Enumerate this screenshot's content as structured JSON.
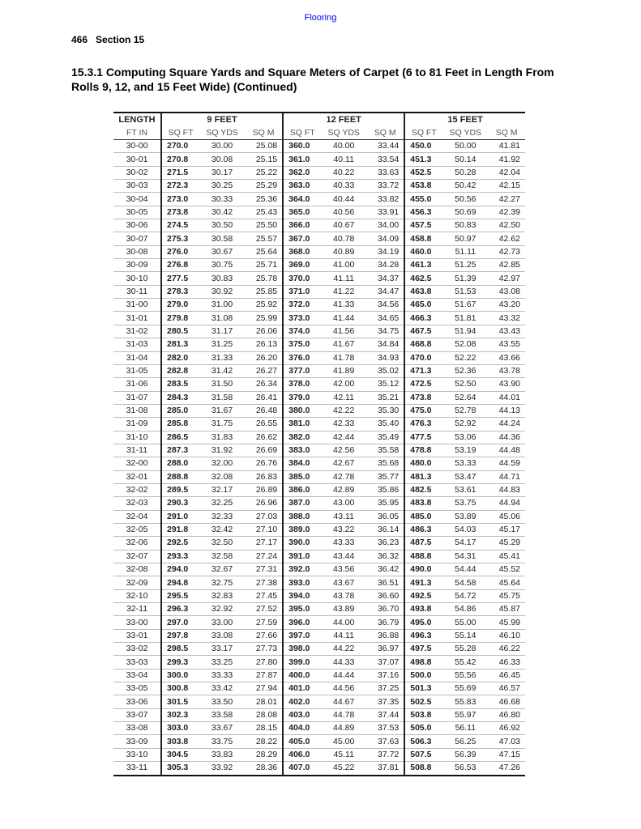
{
  "running_header": "Flooring",
  "page_number": "466",
  "section": "Section 15",
  "title": "15.3.1 Computing Square Yards and Square Meters of Carpet (6 to 81 Feet in Length From Rolls 9, 12, and 15 Feet Wide) (Continued)",
  "table": {
    "group_headers": [
      "LENGTH",
      "9 FEET",
      "12 FEET",
      "15 FEET"
    ],
    "sub_headers": [
      "FT IN",
      "SQ FT",
      "SQ YDS",
      "SQ M",
      "SQ FT",
      "SQ YDS",
      "SQ M",
      "SQ FT",
      "SQ YDS",
      "SQ M"
    ],
    "rows": [
      [
        "30-00",
        "270.0",
        "30.00",
        "25.08",
        "360.0",
        "40.00",
        "33.44",
        "450.0",
        "50.00",
        "41.81"
      ],
      [
        "30-01",
        "270.8",
        "30.08",
        "25.15",
        "361.0",
        "40.11",
        "33.54",
        "451.3",
        "50.14",
        "41.92"
      ],
      [
        "30-02",
        "271.5",
        "30.17",
        "25.22",
        "362.0",
        "40.22",
        "33.63",
        "452.5",
        "50.28",
        "42.04"
      ],
      [
        "30-03",
        "272.3",
        "30.25",
        "25.29",
        "363.0",
        "40.33",
        "33.72",
        "453.8",
        "50.42",
        "42.15"
      ],
      [
        "30-04",
        "273.0",
        "30.33",
        "25.36",
        "364.0",
        "40.44",
        "33.82",
        "455.0",
        "50.56",
        "42.27"
      ],
      [
        "30-05",
        "273.8",
        "30.42",
        "25.43",
        "365.0",
        "40.56",
        "33.91",
        "456.3",
        "50.69",
        "42.39"
      ],
      [
        "30-06",
        "274.5",
        "30.50",
        "25.50",
        "366.0",
        "40.67",
        "34.00",
        "457.5",
        "50.83",
        "42.50"
      ],
      [
        "30-07",
        "275.3",
        "30.58",
        "25.57",
        "367.0",
        "40.78",
        "34.09",
        "458.8",
        "50.97",
        "42.62"
      ],
      [
        "30-08",
        "276.0",
        "30.67",
        "25.64",
        "368.0",
        "40.89",
        "34.19",
        "460.0",
        "51.11",
        "42.73"
      ],
      [
        "30-09",
        "276.8",
        "30.75",
        "25.71",
        "369.0",
        "41.00",
        "34.28",
        "461.3",
        "51.25",
        "42.85"
      ],
      [
        "30-10",
        "277.5",
        "30.83",
        "25.78",
        "370.0",
        "41.11",
        "34.37",
        "462.5",
        "51.39",
        "42.97"
      ],
      [
        "30-11",
        "278.3",
        "30.92",
        "25.85",
        "371.0",
        "41.22",
        "34.47",
        "463.8",
        "51.53",
        "43.08"
      ],
      [
        "31-00",
        "279.0",
        "31.00",
        "25.92",
        "372.0",
        "41.33",
        "34.56",
        "465.0",
        "51.67",
        "43.20"
      ],
      [
        "31-01",
        "279.8",
        "31.08",
        "25.99",
        "373.0",
        "41.44",
        "34.65",
        "466.3",
        "51.81",
        "43.32"
      ],
      [
        "31-02",
        "280.5",
        "31.17",
        "26.06",
        "374.0",
        "41.56",
        "34.75",
        "467.5",
        "51.94",
        "43.43"
      ],
      [
        "31-03",
        "281.3",
        "31.25",
        "26.13",
        "375.0",
        "41.67",
        "34.84",
        "468.8",
        "52.08",
        "43.55"
      ],
      [
        "31-04",
        "282.0",
        "31.33",
        "26.20",
        "376.0",
        "41.78",
        "34.93",
        "470.0",
        "52.22",
        "43.66"
      ],
      [
        "31-05",
        "282.8",
        "31.42",
        "26.27",
        "377.0",
        "41.89",
        "35.02",
        "471.3",
        "52.36",
        "43.78"
      ],
      [
        "31-06",
        "283.5",
        "31.50",
        "26.34",
        "378.0",
        "42.00",
        "35.12",
        "472.5",
        "52.50",
        "43.90"
      ],
      [
        "31-07",
        "284.3",
        "31.58",
        "26.41",
        "379.0",
        "42.11",
        "35.21",
        "473.8",
        "52.64",
        "44.01"
      ],
      [
        "31-08",
        "285.0",
        "31.67",
        "26.48",
        "380.0",
        "42.22",
        "35.30",
        "475.0",
        "52.78",
        "44.13"
      ],
      [
        "31-09",
        "285.8",
        "31.75",
        "26.55",
        "381.0",
        "42.33",
        "35.40",
        "476.3",
        "52.92",
        "44.24"
      ],
      [
        "31-10",
        "286.5",
        "31.83",
        "26.62",
        "382.0",
        "42.44",
        "35.49",
        "477.5",
        "53.06",
        "44.36"
      ],
      [
        "31-11",
        "287.3",
        "31.92",
        "26.69",
        "383.0",
        "42.56",
        "35.58",
        "478.8",
        "53.19",
        "44.48"
      ],
      [
        "32-00",
        "288.0",
        "32.00",
        "26.76",
        "384.0",
        "42.67",
        "35.68",
        "480.0",
        "53.33",
        "44.59"
      ],
      [
        "32-01",
        "288.8",
        "32.08",
        "26.83",
        "385.0",
        "42.78",
        "35.77",
        "481.3",
        "53.47",
        "44.71"
      ],
      [
        "32-02",
        "289.5",
        "32.17",
        "26.89",
        "386.0",
        "42.89",
        "35.86",
        "482.5",
        "53.61",
        "44.83"
      ],
      [
        "32-03",
        "290.3",
        "32.25",
        "26.96",
        "387.0",
        "43.00",
        "35.95",
        "483.8",
        "53.75",
        "44.94"
      ],
      [
        "32-04",
        "291.0",
        "32.33",
        "27.03",
        "388.0",
        "43.11",
        "36.05",
        "485.0",
        "53.89",
        "45.06"
      ],
      [
        "32-05",
        "291.8",
        "32.42",
        "27.10",
        "389.0",
        "43.22",
        "36.14",
        "486.3",
        "54.03",
        "45.17"
      ],
      [
        "32-06",
        "292.5",
        "32.50",
        "27.17",
        "390.0",
        "43.33",
        "36.23",
        "487.5",
        "54.17",
        "45.29"
      ],
      [
        "32-07",
        "293.3",
        "32.58",
        "27.24",
        "391.0",
        "43.44",
        "36.32",
        "488.8",
        "54.31",
        "45.41"
      ],
      [
        "32-08",
        "294.0",
        "32.67",
        "27.31",
        "392.0",
        "43.56",
        "36.42",
        "490.0",
        "54.44",
        "45.52"
      ],
      [
        "32-09",
        "294.8",
        "32.75",
        "27.38",
        "393.0",
        "43.67",
        "36.51",
        "491.3",
        "54.58",
        "45.64"
      ],
      [
        "32-10",
        "295.5",
        "32.83",
        "27.45",
        "394.0",
        "43.78",
        "36.60",
        "492.5",
        "54.72",
        "45.75"
      ],
      [
        "32-11",
        "296.3",
        "32.92",
        "27.52",
        "395.0",
        "43.89",
        "36.70",
        "493.8",
        "54.86",
        "45.87"
      ],
      [
        "33-00",
        "297.0",
        "33.00",
        "27.59",
        "396.0",
        "44.00",
        "36.79",
        "495.0",
        "55.00",
        "45.99"
      ],
      [
        "33-01",
        "297.8",
        "33.08",
        "27.66",
        "397.0",
        "44.11",
        "36.88",
        "496.3",
        "55.14",
        "46.10"
      ],
      [
        "33-02",
        "298.5",
        "33.17",
        "27.73",
        "398.0",
        "44.22",
        "36.97",
        "497.5",
        "55.28",
        "46.22"
      ],
      [
        "33-03",
        "299.3",
        "33.25",
        "27.80",
        "399.0",
        "44.33",
        "37.07",
        "498.8",
        "55.42",
        "46.33"
      ],
      [
        "33-04",
        "300.0",
        "33.33",
        "27.87",
        "400.0",
        "44.44",
        "37.16",
        "500.0",
        "55.56",
        "46.45"
      ],
      [
        "33-05",
        "300.8",
        "33.42",
        "27.94",
        "401.0",
        "44.56",
        "37.25",
        "501.3",
        "55.69",
        "46.57"
      ],
      [
        "33-06",
        "301.5",
        "33.50",
        "28.01",
        "402.0",
        "44.67",
        "37.35",
        "502.5",
        "55.83",
        "46.68"
      ],
      [
        "33-07",
        "302.3",
        "33.58",
        "28.08",
        "403.0",
        "44.78",
        "37.44",
        "503.8",
        "55.97",
        "46.80"
      ],
      [
        "33-08",
        "303.0",
        "33.67",
        "28.15",
        "404.0",
        "44.89",
        "37.53",
        "505.0",
        "56.11",
        "46.92"
      ],
      [
        "33-09",
        "303.8",
        "33.75",
        "28.22",
        "405.0",
        "45.00",
        "37.63",
        "506.3",
        "56.25",
        "47.03"
      ],
      [
        "33-10",
        "304.5",
        "33.83",
        "28.29",
        "406.0",
        "45.11",
        "37.72",
        "507.5",
        "56.39",
        "47.15"
      ],
      [
        "33-11",
        "305.3",
        "33.92",
        "28.36",
        "407.0",
        "45.22",
        "37.81",
        "508.8",
        "56.53",
        "47.26"
      ]
    ]
  }
}
